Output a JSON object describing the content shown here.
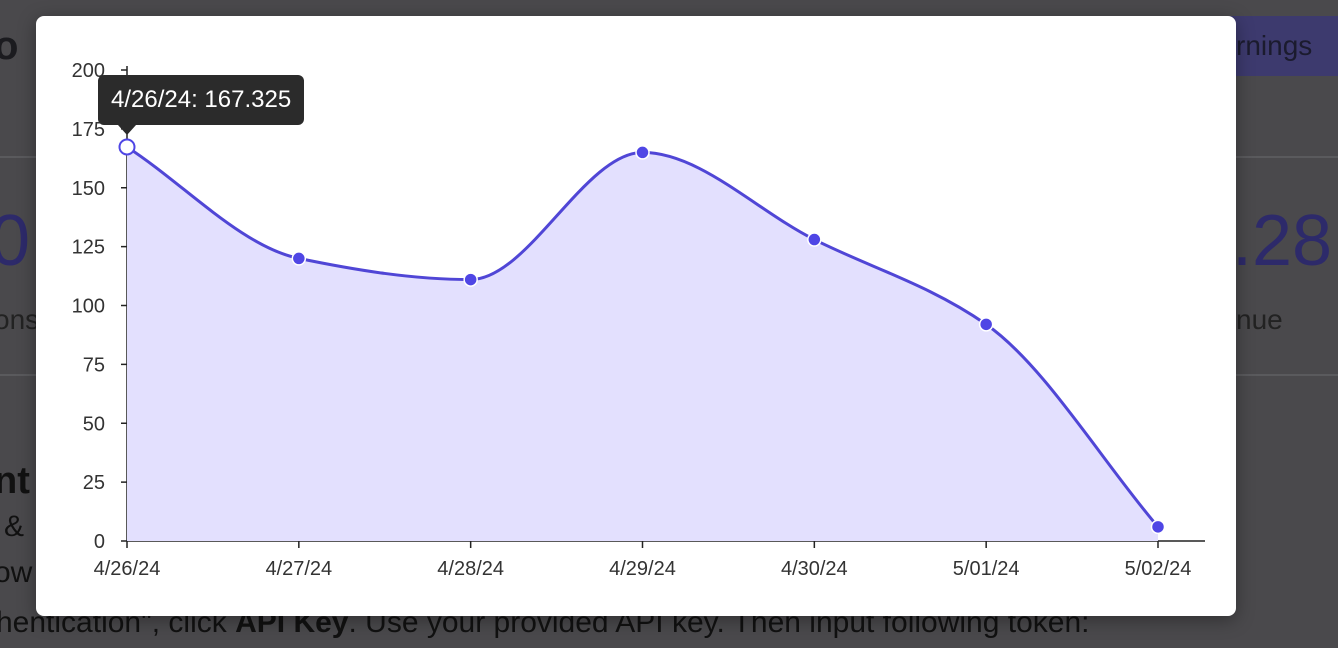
{
  "background": {
    "title_fragment": "o",
    "earnings_tab": "rnings",
    "stat_left": "0",
    "stat_right": ".28",
    "sub_left": "ons",
    "sub_right": "nue",
    "heading_fragment": "nt",
    "line1_fragment": "&",
    "line2_fragment": "ow",
    "instruction_pre": "hentication\", click ",
    "instruction_bold": "API Key",
    "instruction_post": ". Use your provided API key. Then input following token:"
  },
  "colors": {
    "line": "#5046d6",
    "fill": "#e3e0fe",
    "point": "#4f46e5",
    "point_stroke": "#ffffff",
    "tooltip_bg": "#2b2b2b"
  },
  "chart_data": {
    "type": "area",
    "x": [
      "4/26/24",
      "4/27/24",
      "4/28/24",
      "4/29/24",
      "4/30/24",
      "5/01/24",
      "5/02/24"
    ],
    "values": [
      167.325,
      120,
      111,
      165,
      128,
      92,
      6
    ],
    "ylim": [
      0,
      200
    ],
    "yticks": [
      0,
      25,
      50,
      75,
      100,
      125,
      150,
      175,
      200
    ],
    "tooltip": {
      "index": 0,
      "label": "4/26/24: 167.325"
    },
    "grid": false,
    "curve": "smooth"
  }
}
